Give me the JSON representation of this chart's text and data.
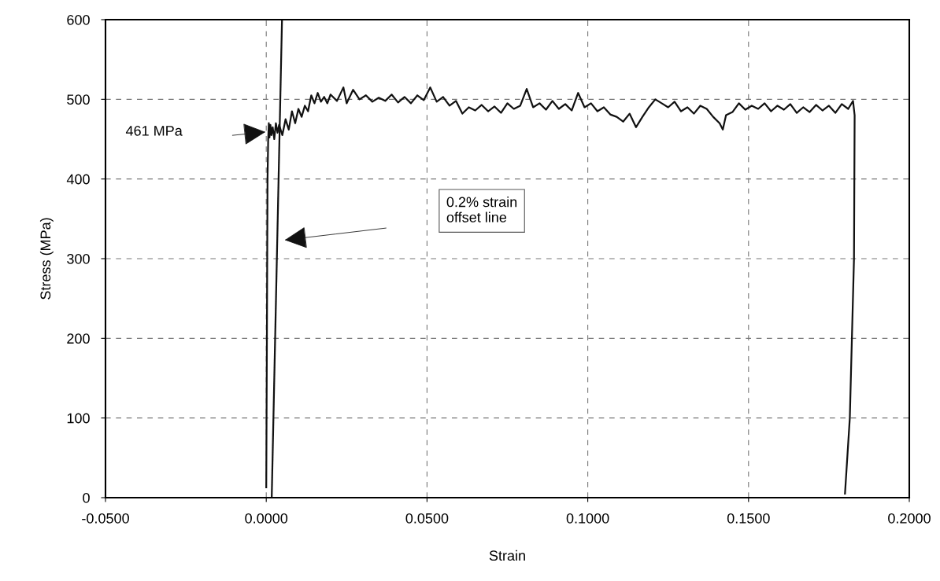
{
  "chart_data": {
    "type": "line",
    "xlabel": "Strain",
    "ylabel": "Stress (MPa)",
    "xlim": [
      -0.05,
      0.2
    ],
    "ylim": [
      0,
      600
    ],
    "xticks": [
      {
        "value": -0.05,
        "label": "-0.0500"
      },
      {
        "value": 0,
        "label": "0.0000"
      },
      {
        "value": 0.05,
        "label": "0.0500"
      },
      {
        "value": 0.1,
        "label": "0.1000"
      },
      {
        "value": 0.15,
        "label": "0.1500"
      },
      {
        "value": 0.2,
        "label": "0.2000"
      }
    ],
    "yticks": [
      0,
      100,
      200,
      300,
      400,
      500,
      600
    ],
    "grid": true,
    "legend": false,
    "marker": "none",
    "series": [
      {
        "color": "#111111",
        "line_style": "solid",
        "x": [
          0.0,
          0.0002,
          0.0004,
          0.0006,
          0.0008,
          0.001,
          0.0013,
          0.0016,
          0.002,
          0.0025,
          0.003,
          0.0035,
          0.004,
          0.005,
          0.006,
          0.007,
          0.008,
          0.009,
          0.01,
          0.011,
          0.012,
          0.013,
          0.014,
          0.015,
          0.016,
          0.017,
          0.018,
          0.019,
          0.02,
          0.022,
          0.024,
          0.025,
          0.027,
          0.029,
          0.031,
          0.033,
          0.035,
          0.037,
          0.039,
          0.041,
          0.043,
          0.045,
          0.047,
          0.049,
          0.051,
          0.053,
          0.055,
          0.057,
          0.059,
          0.061,
          0.063,
          0.065,
          0.067,
          0.069,
          0.071,
          0.073,
          0.075,
          0.077,
          0.079,
          0.081,
          0.083,
          0.085,
          0.087,
          0.089,
          0.091,
          0.093,
          0.095,
          0.097,
          0.099,
          0.101,
          0.103,
          0.105,
          0.107,
          0.109,
          0.111,
          0.113,
          0.115,
          0.117,
          0.119,
          0.121,
          0.123,
          0.125,
          0.127,
          0.129,
          0.131,
          0.133,
          0.135,
          0.137,
          0.139,
          0.141,
          0.142,
          0.143,
          0.145,
          0.147,
          0.149,
          0.151,
          0.153,
          0.155,
          0.157,
          0.159,
          0.161,
          0.163,
          0.165,
          0.167,
          0.169,
          0.171,
          0.173,
          0.175,
          0.177,
          0.179,
          0.181,
          0.1825,
          0.183,
          0.1828,
          0.1815,
          0.18
        ],
        "values": [
          13,
          200,
          400,
          450,
          470,
          452,
          468,
          455,
          465,
          450,
          470,
          458,
          468,
          455,
          475,
          462,
          485,
          470,
          488,
          478,
          492,
          485,
          505,
          495,
          508,
          497,
          503,
          495,
          506,
          498,
          515,
          495,
          512,
          500,
          505,
          497,
          502,
          498,
          506,
          496,
          503,
          495,
          505,
          499,
          515,
          497,
          503,
          492,
          498,
          482,
          490,
          486,
          493,
          485,
          491,
          483,
          495,
          488,
          492,
          513,
          490,
          495,
          487,
          498,
          488,
          494,
          486,
          508,
          490,
          495,
          485,
          490,
          481,
          478,
          472,
          482,
          465,
          478,
          490,
          500,
          495,
          490,
          497,
          485,
          490,
          482,
          492,
          488,
          478,
          470,
          462,
          480,
          484,
          495,
          487,
          492,
          488,
          495,
          485,
          492,
          487,
          494,
          483,
          490,
          484,
          493,
          486,
          492,
          483,
          494,
          488,
          498,
          480,
          300,
          100,
          5
        ]
      },
      {
        "color": "#111111",
        "line_style": "solid",
        "x": [
          0.0017,
          0.0049
        ],
        "values": [
          0,
          600
        ]
      }
    ],
    "annotations": [
      "461 MPa",
      "0.2% strain\noffset line"
    ]
  }
}
